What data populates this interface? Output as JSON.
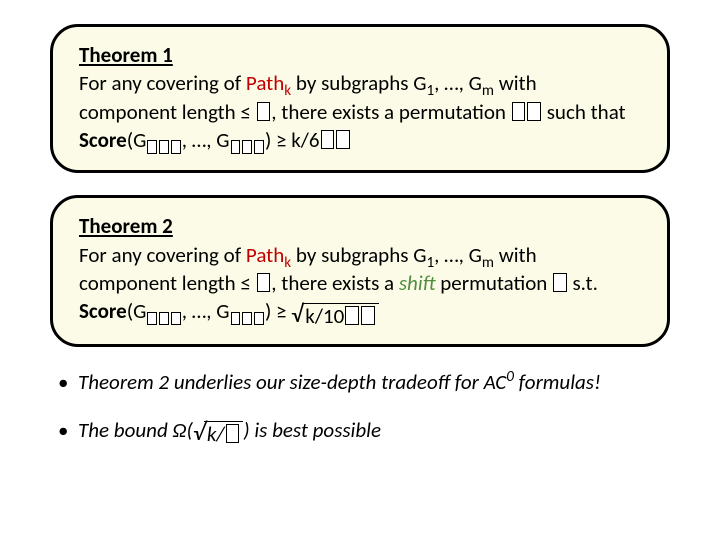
{
  "theorem1": {
    "title": "Theorem 1",
    "line1_a": "For any covering of ",
    "path": "Path",
    "path_sub": "k",
    "line1_b": " by subgraphs G",
    "g_sub1": "1",
    "line1_c": ", …, G",
    "g_subm": "m",
    "line1_d": " with",
    "line2_a": "component length ≤ ",
    "line2_b": ", there exists a permutation ",
    "line2_c": " such that",
    "score": "Score",
    "line3_a": "(G",
    "line3_b": ", …, G",
    "line3_c": ") ≥ k/6"
  },
  "theorem2": {
    "title": "Theorem 2",
    "line1_a": "For any covering of ",
    "line1_b": " by subgraphs G",
    "line1_c": ", …, G",
    "line1_d": " with",
    "line2_a": "component length ≤ ",
    "line2_b": ", there exists a ",
    "shift": "shift",
    "line2_c": " permutation ",
    "st": " s.t.",
    "line3_a": "(G",
    "line3_b": ", …, G",
    "line3_c": ") ≥ ",
    "sqrt_body": "k/10"
  },
  "bullet1_a": "Theorem 2 underlies our size-depth tradeoff for AC",
  "bullet1_sup": "0",
  "bullet1_b": " formulas!",
  "bullet2_a": "The bound Ω(",
  "bullet2_sqrt": "k/",
  "bullet2_b": ") is best possible",
  "colors": {
    "box_bg": "#fbfbe7",
    "box_border": "#000000",
    "path": "#c00000",
    "shift": "#4f8f3f",
    "text": "#000000",
    "bg": "#ffffff"
  },
  "fontsize_box": 21,
  "fontsize_bullet": 21
}
